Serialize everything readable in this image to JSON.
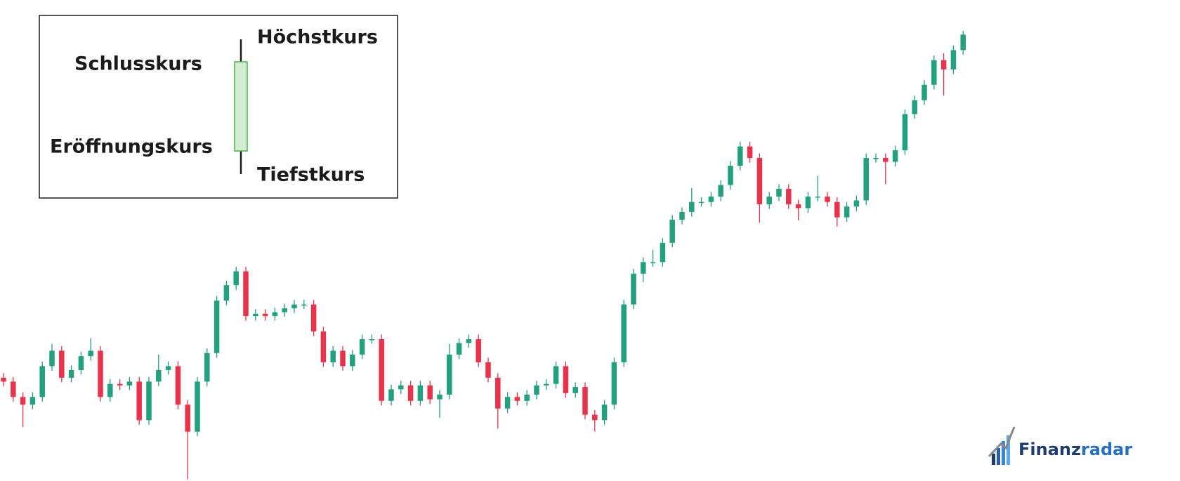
{
  "chart_data": {
    "type": "candlestick",
    "ylim": [
      0,
      624
    ],
    "up_color": "#22a07f",
    "down_color": "#e8334a",
    "open": [
      134,
      129,
      109,
      99,
      109,
      149,
      169,
      134,
      144,
      162,
      169,
      109,
      126,
      124,
      129,
      79,
      129,
      144,
      149,
      99,
      64,
      129,
      166,
      234,
      254,
      272,
      214,
      217,
      214,
      219,
      224,
      229,
      229,
      194,
      154,
      169,
      149,
      164,
      184,
      184,
      104,
      119,
      124,
      104,
      124,
      106,
      112,
      164,
      179,
      184,
      154,
      134,
      94,
      109,
      104,
      112,
      124,
      126,
      149,
      114,
      122,
      86,
      79,
      99,
      154,
      229,
      269,
      284,
      284,
      309,
      339,
      349,
      362,
      362,
      369,
      384,
      409,
      434,
      419,
      359,
      369,
      379,
      359,
      354,
      369,
      369,
      362,
      342,
      356,
      364,
      419,
      419,
      414,
      429,
      476,
      494,
      514,
      546,
      534,
      559
    ],
    "high": [
      140,
      135,
      115,
      115,
      155,
      178,
      175,
      150,
      168,
      185,
      175,
      132,
      132,
      135,
      135,
      135,
      164,
      155,
      155,
      105,
      135,
      172,
      240,
      260,
      278,
      278,
      223,
      223,
      225,
      230,
      235,
      235,
      235,
      200,
      175,
      175,
      170,
      190,
      190,
      190,
      125,
      130,
      130,
      130,
      130,
      118,
      178,
      185,
      190,
      190,
      160,
      140,
      115,
      115,
      118,
      130,
      132,
      155,
      155,
      128,
      128,
      92,
      105,
      160,
      235,
      275,
      290,
      300,
      315,
      345,
      355,
      380,
      368,
      375,
      390,
      415,
      440,
      440,
      425,
      375,
      385,
      385,
      365,
      375,
      396,
      375,
      368,
      362,
      370,
      425,
      425,
      425,
      435,
      482,
      500,
      520,
      552,
      555,
      565,
      584
    ],
    "low": [
      123,
      103,
      70,
      93,
      103,
      143,
      128,
      128,
      138,
      156,
      103,
      103,
      118,
      118,
      73,
      73,
      123,
      138,
      93,
      2,
      58,
      123,
      160,
      228,
      248,
      208,
      208,
      208,
      208,
      213,
      218,
      223,
      188,
      148,
      148,
      143,
      143,
      158,
      178,
      98,
      98,
      113,
      98,
      98,
      100,
      82,
      106,
      158,
      173,
      148,
      128,
      68,
      88,
      98,
      98,
      106,
      118,
      120,
      108,
      108,
      80,
      64,
      73,
      93,
      148,
      223,
      258,
      278,
      278,
      303,
      333,
      343,
      356,
      356,
      363,
      378,
      403,
      413,
      335,
      353,
      363,
      353,
      338,
      348,
      363,
      356,
      330,
      336,
      350,
      358,
      413,
      385,
      408,
      423,
      470,
      488,
      508,
      500,
      528,
      553
    ],
    "close": [
      129,
      109,
      99,
      109,
      149,
      169,
      134,
      144,
      162,
      169,
      109,
      126,
      124,
      129,
      79,
      129,
      144,
      149,
      99,
      64,
      129,
      166,
      234,
      254,
      272,
      214,
      217,
      214,
      219,
      224,
      229,
      229,
      194,
      154,
      169,
      149,
      164,
      184,
      184,
      104,
      119,
      124,
      104,
      124,
      106,
      112,
      164,
      179,
      184,
      154,
      134,
      94,
      109,
      104,
      112,
      124,
      126,
      149,
      114,
      122,
      86,
      79,
      99,
      154,
      229,
      269,
      284,
      284,
      309,
      339,
      349,
      362,
      362,
      369,
      384,
      409,
      434,
      419,
      359,
      369,
      379,
      359,
      354,
      369,
      369,
      362,
      342,
      356,
      364,
      419,
      419,
      414,
      429,
      476,
      494,
      514,
      546,
      534,
      559,
      579
    ]
  },
  "legend": {
    "high": "Höchstkurs",
    "close": "Schlusskurs",
    "open": "Eröffnungskurs",
    "low": "Tiefstkurs"
  },
  "logo": [
    "Finanz",
    "radar"
  ]
}
